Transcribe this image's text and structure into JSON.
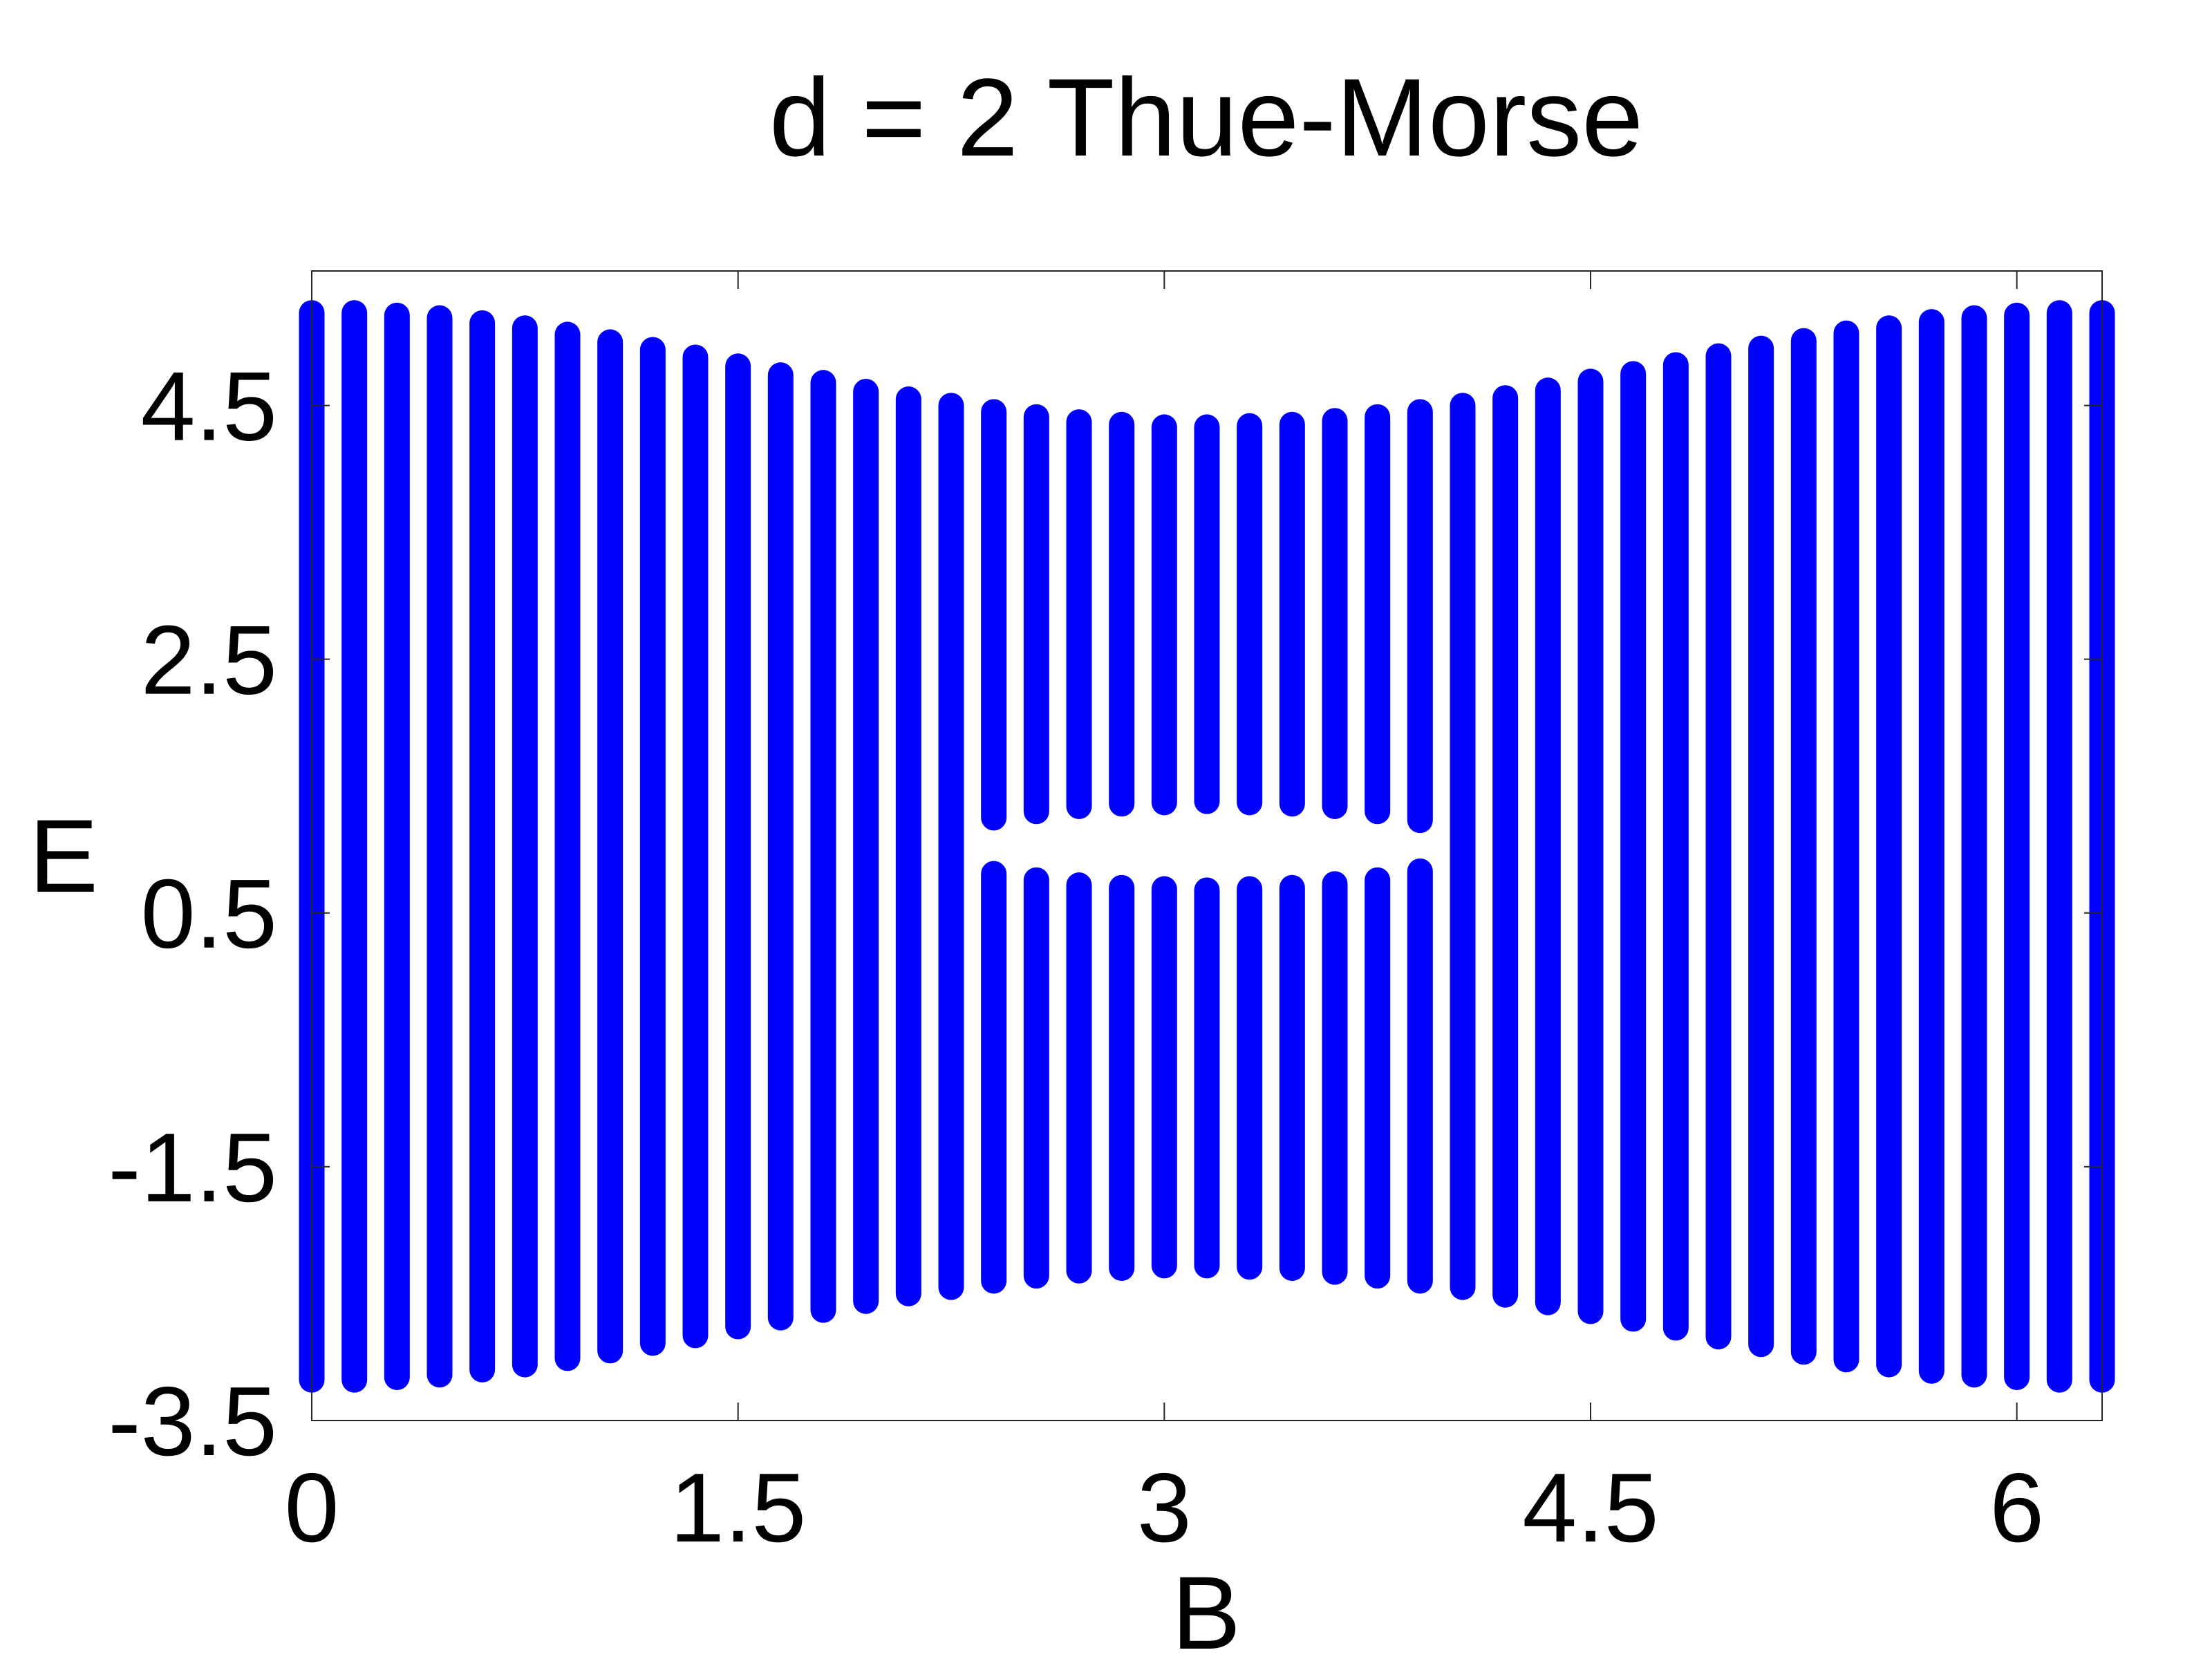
{
  "chart_data": {
    "type": "range",
    "title": "d = 2 Thue-Morse",
    "xlabel": "B",
    "ylabel": "E",
    "color": "#0000ff",
    "x": [
      0,
      0.15,
      0.3,
      0.45,
      0.6,
      0.75,
      0.9,
      1.05,
      1.2,
      1.35,
      1.5,
      1.65,
      1.8,
      1.95,
      2.1,
      2.25,
      2.4,
      2.55,
      2.7,
      2.85,
      3.0,
      3.15,
      3.3,
      3.45,
      3.6,
      3.75,
      3.9,
      4.05,
      4.2,
      4.35,
      4.5,
      4.65,
      4.8,
      4.95,
      5.1,
      5.25,
      5.4,
      5.55,
      5.7,
      5.85,
      6.0,
      6.15,
      6.3
    ],
    "upper": [
      5.33,
      5.33,
      5.31,
      5.29,
      5.25,
      5.21,
      5.16,
      5.1,
      5.04,
      4.98,
      4.91,
      4.84,
      4.78,
      4.71,
      4.65,
      4.6,
      4.55,
      4.51,
      4.47,
      4.45,
      4.43,
      4.43,
      4.44,
      4.45,
      4.48,
      4.51,
      4.55,
      4.6,
      4.66,
      4.72,
      4.79,
      4.85,
      4.92,
      4.99,
      5.05,
      5.11,
      5.17,
      5.21,
      5.26,
      5.29,
      5.31,
      5.33,
      5.33
    ],
    "lower": [
      -3.28,
      -3.28,
      -3.26,
      -3.24,
      -3.2,
      -3.16,
      -3.11,
      -3.05,
      -2.99,
      -2.93,
      -2.86,
      -2.79,
      -2.73,
      -2.66,
      -2.6,
      -2.55,
      -2.5,
      -2.46,
      -2.42,
      -2.4,
      -2.38,
      -2.38,
      -2.39,
      -2.4,
      -2.43,
      -2.46,
      -2.5,
      -2.55,
      -2.61,
      -2.67,
      -2.74,
      -2.8,
      -2.87,
      -2.94,
      -3.0,
      -3.06,
      -3.12,
      -3.16,
      -3.21,
      -3.24,
      -3.26,
      -3.28,
      -3.28
    ],
    "gap_lower": [
      null,
      null,
      null,
      null,
      null,
      null,
      null,
      null,
      null,
      null,
      null,
      null,
      null,
      null,
      null,
      null,
      0.91,
      0.86,
      0.82,
      0.8,
      0.79,
      0.78,
      0.79,
      0.8,
      0.83,
      0.86,
      0.93,
      null,
      null,
      null,
      null,
      null,
      null,
      null,
      null,
      null,
      null,
      null,
      null,
      null,
      null,
      null,
      null
    ],
    "gap_upper": [
      null,
      null,
      null,
      null,
      null,
      null,
      null,
      null,
      null,
      null,
      null,
      null,
      null,
      null,
      null,
      null,
      1.15,
      1.2,
      1.24,
      1.26,
      1.27,
      1.28,
      1.27,
      1.26,
      1.24,
      1.2,
      1.13,
      null,
      null,
      null,
      null,
      null,
      null,
      null,
      null,
      null,
      null,
      null,
      null,
      null,
      null,
      null,
      null
    ],
    "xlim": [
      0,
      6.3
    ],
    "ylim": [
      -3.5,
      5.56
    ],
    "xticks": [
      0,
      1.5,
      3,
      4.5,
      6
    ],
    "yticks": [
      -3.5,
      -1.5,
      0.5,
      2.5,
      4.5
    ],
    "grid": false
  }
}
